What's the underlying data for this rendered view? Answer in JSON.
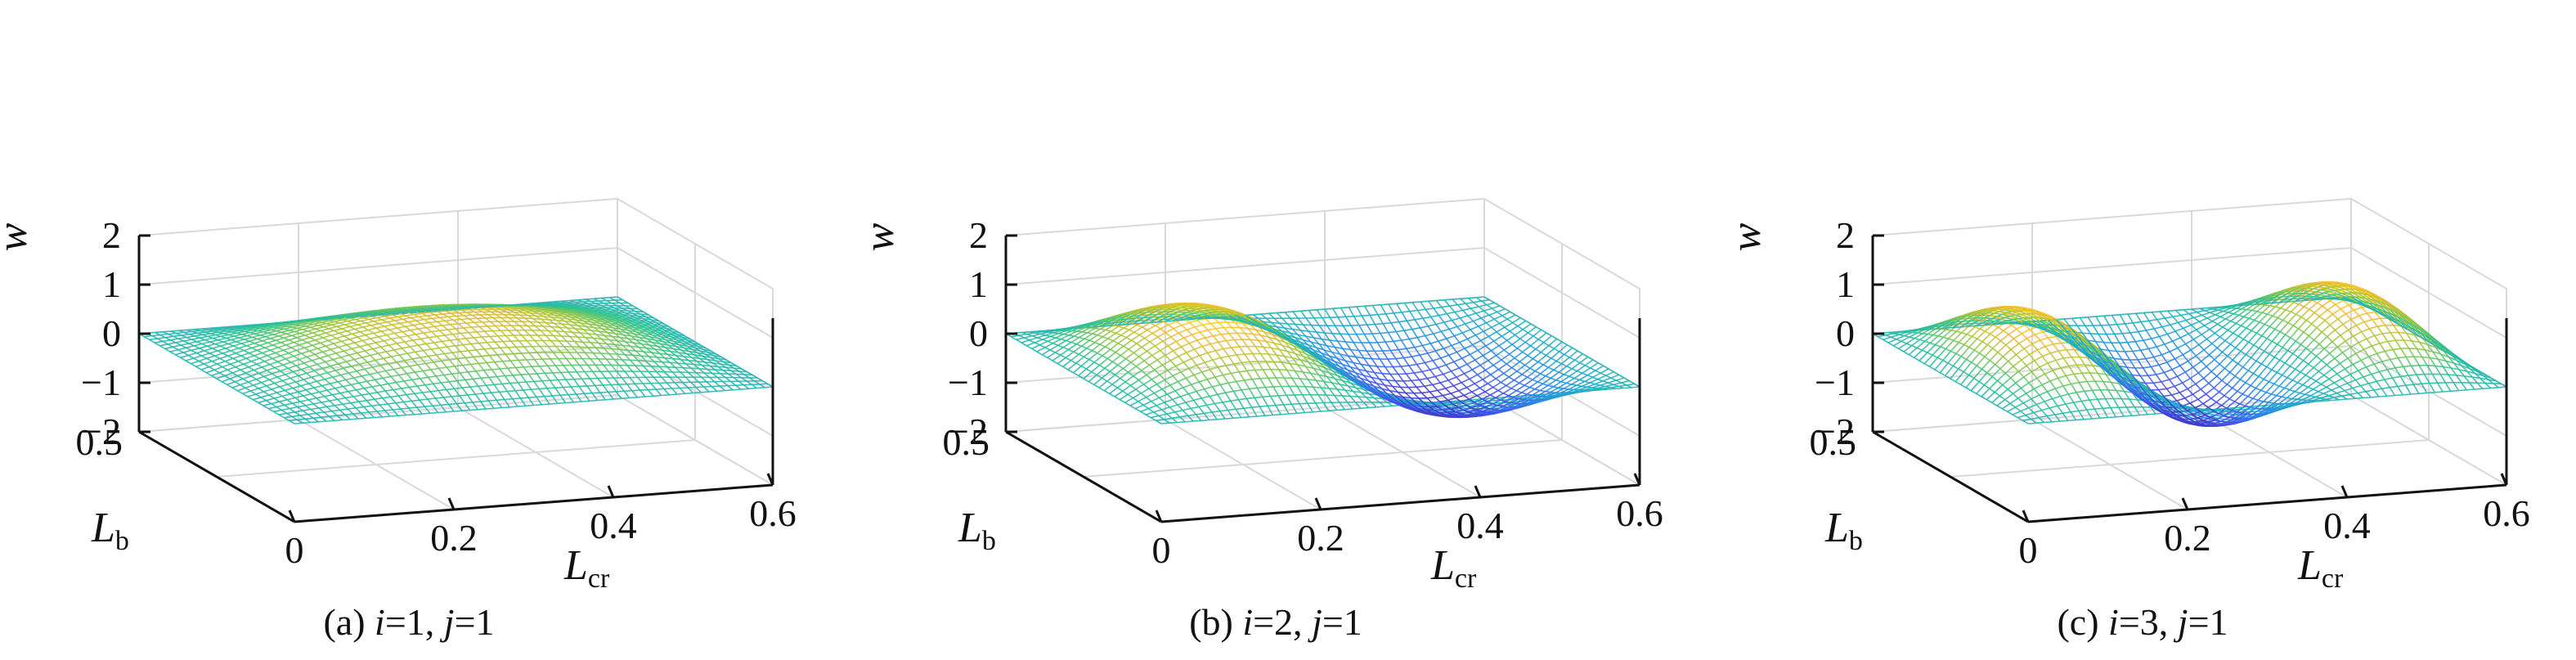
{
  "chart_data": [
    {
      "type": "surface",
      "caption": {
        "prefix": "(a) ",
        "i_sym": "i",
        "i_val": "=1, ",
        "j_sym": "j",
        "j_val": "=1"
      },
      "mode": {
        "i": 1,
        "j": 1
      },
      "zlabel": "w",
      "xlabel": {
        "base": "L",
        "sub": "cr"
      },
      "ylabel": {
        "base": "L",
        "sub": "b"
      },
      "xlim": [
        0,
        0.6
      ],
      "ylim": [
        0,
        0.5
      ],
      "zlim": [
        -2,
        2
      ],
      "xticks": [
        "0",
        "0.2",
        "0.4",
        "0.6"
      ],
      "yticks": [
        "0.5"
      ],
      "zticks": [
        "2",
        "1",
        "0",
        "−1",
        "−2"
      ],
      "grid": true,
      "colormap": "parula"
    },
    {
      "type": "surface",
      "caption": {
        "prefix": "(b) ",
        "i_sym": "i",
        "i_val": "=2, ",
        "j_sym": "j",
        "j_val": "=1"
      },
      "mode": {
        "i": 2,
        "j": 1
      },
      "zlabel": "w",
      "xlabel": {
        "base": "L",
        "sub": "cr"
      },
      "ylabel": {
        "base": "L",
        "sub": "b"
      },
      "xlim": [
        0,
        0.6
      ],
      "ylim": [
        0,
        0.5
      ],
      "zlim": [
        -2,
        2
      ],
      "xticks": [
        "0",
        "0.2",
        "0.4",
        "0.6"
      ],
      "yticks": [
        "0.5"
      ],
      "zticks": [
        "2",
        "1",
        "0",
        "−1",
        "−2"
      ],
      "grid": true,
      "colormap": "parula"
    },
    {
      "type": "surface",
      "caption": {
        "prefix": "(c) ",
        "i_sym": "i",
        "i_val": "=3, ",
        "j_sym": "j",
        "j_val": "=1"
      },
      "mode": {
        "i": 3,
        "j": 1
      },
      "zlabel": "w",
      "xlabel": {
        "base": "L",
        "sub": "cr"
      },
      "ylabel": {
        "base": "L",
        "sub": "b"
      },
      "xlim": [
        0,
        0.6
      ],
      "ylim": [
        0,
        0.5
      ],
      "zlim": [
        -2,
        2
      ],
      "xticks": [
        "0",
        "0.2",
        "0.4",
        "0.6"
      ],
      "yticks": [
        "0.5"
      ],
      "zticks": [
        "2",
        "1",
        "0",
        "−1",
        "−2"
      ],
      "grid": true,
      "colormap": "parula"
    }
  ]
}
